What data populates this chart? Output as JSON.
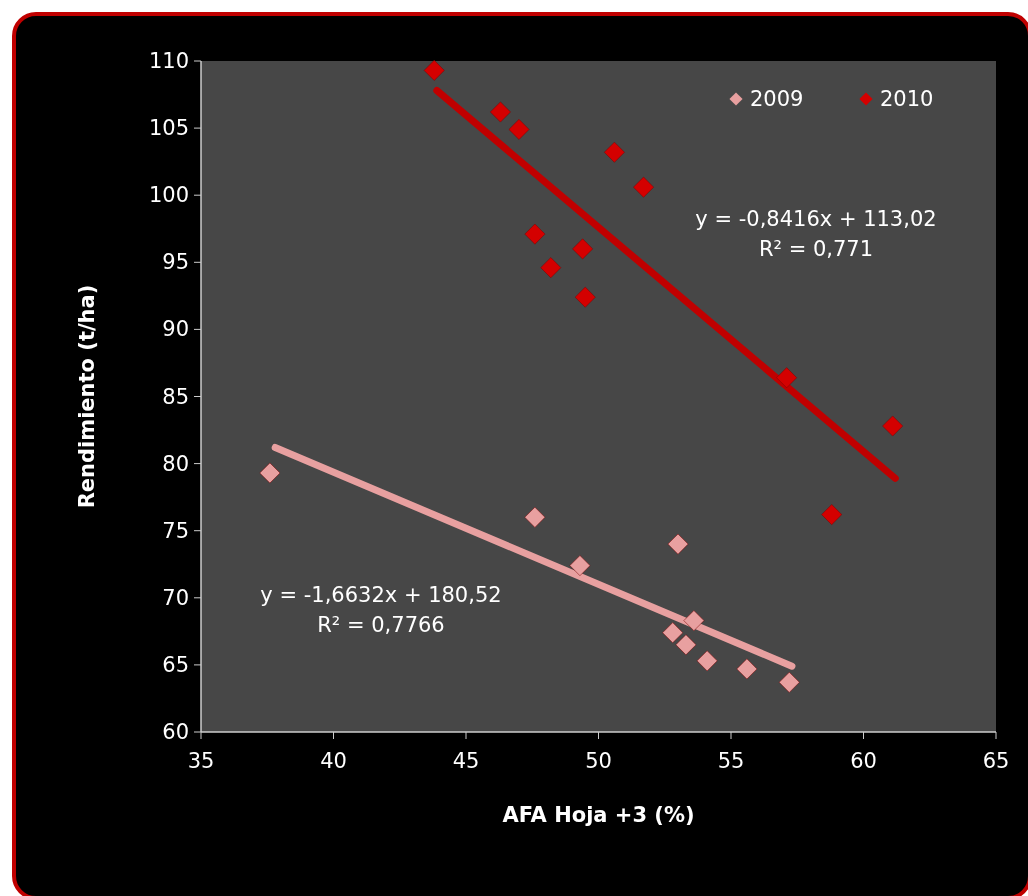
{
  "chart_data": {
    "type": "scatter",
    "xlabel": "AFA Hoja +3 (%)",
    "ylabel": "Rendimiento (t/ha)",
    "xlim": [
      35,
      65
    ],
    "xticks": [
      35,
      40,
      45,
      50,
      55,
      60,
      65
    ],
    "ylim": [
      60,
      110
    ],
    "yticks": [
      60,
      65,
      70,
      75,
      80,
      85,
      90,
      95,
      100,
      105,
      110
    ],
    "grid": false,
    "legend": "top right",
    "series": [
      {
        "name": "2009",
        "marker": "diamond",
        "color": "#e8a0a0",
        "x": [
          37.6,
          47.6,
          49.3,
          53.0,
          53.6,
          52.8,
          53.3,
          54.1,
          55.6,
          57.2
        ],
        "values": [
          79.3,
          76.0,
          72.4,
          74.0,
          68.3,
          67.4,
          66.5,
          65.3,
          64.7,
          63.7
        ]
      },
      {
        "name": "2010",
        "marker": "diamond",
        "color": "#d40000",
        "x": [
          43.8,
          46.3,
          47.0,
          50.6,
          51.7,
          47.6,
          49.4,
          48.2,
          49.5,
          57.1,
          61.1,
          58.8
        ],
        "values": [
          109.3,
          106.2,
          104.9,
          103.2,
          100.6,
          97.1,
          96.0,
          94.6,
          92.4,
          86.4,
          82.8,
          76.2
        ]
      },
      {
        "type": "line",
        "color": "#e8a0a0",
        "x": [
          37.8,
          57.3
        ],
        "values": [
          81.2,
          64.9
        ]
      },
      {
        "type": "line",
        "color": "#c00000",
        "x": [
          43.9,
          61.2
        ],
        "values": [
          107.8,
          78.9
        ]
      }
    ],
    "annotations": [
      "y = -1,6632x + 180,52\nR² = 0,7766",
      "y = -0,8416x + 113,02\nR² = 0,771"
    ]
  }
}
